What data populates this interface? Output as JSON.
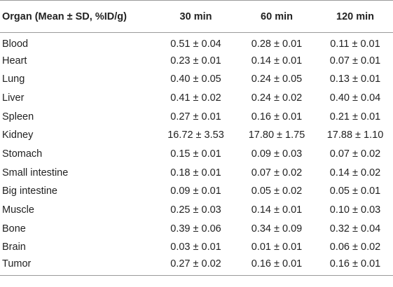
{
  "table": {
    "headers": [
      "Organ (Mean ± SD, %ID/g)",
      "30 min",
      "60 min",
      "120 min"
    ],
    "rows": [
      [
        "Blood",
        "0.51 ± 0.04",
        "0.28 ± 0.01",
        "0.11 ± 0.01"
      ],
      [
        "Heart",
        "0.23 ± 0.01",
        "0.14 ± 0.01",
        "0.07 ± 0.01"
      ],
      [
        "Lung",
        "0.40 ± 0.05",
        "0.24 ± 0.05",
        "0.13 ± 0.01"
      ],
      [
        "Liver",
        "0.41 ± 0.02",
        "0.24 ± 0.02",
        "0.40 ± 0.04"
      ],
      [
        "Spleen",
        "0.27 ± 0.01",
        "0.16 ± 0.01",
        "0.21 ± 0.01"
      ],
      [
        "Kidney",
        "16.72 ± 3.53",
        "17.80 ± 1.75",
        "17.88 ± 1.10"
      ],
      [
        "Stomach",
        "0.15 ± 0.01",
        "0.09 ± 0.03",
        "0.07 ± 0.02"
      ],
      [
        "Small intestine",
        "0.18 ± 0.01",
        "0.07 ± 0.02",
        "0.14 ± 0.02"
      ],
      [
        "Big intestine",
        "0.09 ± 0.01",
        "0.05 ± 0.02",
        "0.05 ± 0.01"
      ],
      [
        "Muscle",
        "0.25 ± 0.03",
        "0.14 ± 0.01",
        "0.10 ± 0.03"
      ],
      [
        "Bone",
        "0.39 ± 0.06",
        "0.34 ± 0.09",
        "0.32 ± 0.04"
      ],
      [
        "Brain",
        "0.03 ± 0.01",
        "0.01 ± 0.01",
        "0.06 ± 0.02"
      ],
      [
        "Tumor",
        "0.27 ± 0.02",
        "0.16 ± 0.01",
        "0.16 ± 0.01"
      ]
    ]
  }
}
